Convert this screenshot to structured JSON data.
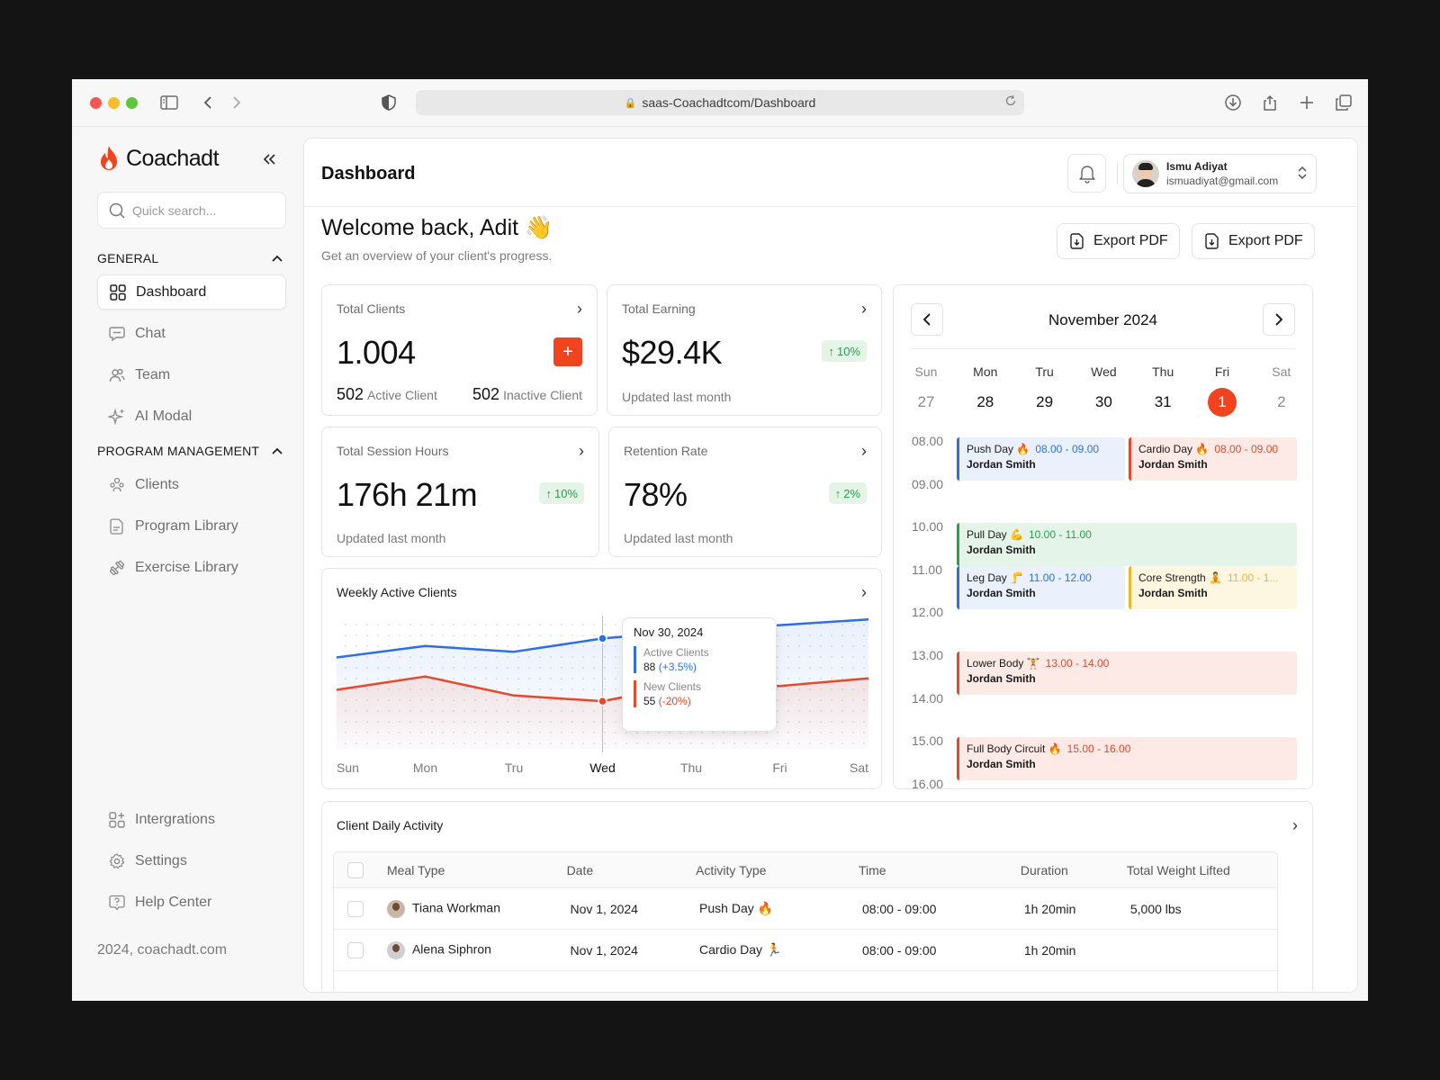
{
  "browser": {
    "url": "saas-Coachadtcom/Dashboard"
  },
  "sidebar": {
    "brand": "Coachadt",
    "search_placeholder": "Quick search...",
    "sections": [
      {
        "title": "GENERAL"
      },
      {
        "title": "PROGRAM MANAGEMENT"
      }
    ],
    "general_items": [
      {
        "label": "Dashboard",
        "icon": "grid-icon",
        "active": true
      },
      {
        "label": "Chat",
        "icon": "chat-icon"
      },
      {
        "label": "Team",
        "icon": "users-icon"
      },
      {
        "label": "AI Modal",
        "icon": "sparkle-icon"
      }
    ],
    "program_items": [
      {
        "label": "Clients",
        "icon": "clients-icon"
      },
      {
        "label": "Program Library",
        "icon": "document-icon"
      },
      {
        "label": "Exercise Library",
        "icon": "dumbbell-icon"
      }
    ],
    "bottom_items": [
      {
        "label": "Intergrations",
        "icon": "integrations-icon"
      },
      {
        "label": "Settings",
        "icon": "gear-icon"
      },
      {
        "label": "Help Center",
        "icon": "help-icon"
      }
    ],
    "copyright": "2024, coachadt.com"
  },
  "header": {
    "title": "Dashboard",
    "user_name": "Ismu Adiyat",
    "user_email": "ismuadiyat@gmail.com"
  },
  "welcome": {
    "title": "Welcome back, Adit 👋",
    "subtitle": "Get an overview of your client's progress.",
    "export_labels": [
      "Export PDF",
      "Export PDF"
    ]
  },
  "stats": {
    "total_clients": {
      "title": "Total Clients",
      "value": "1.004",
      "active_count": "502",
      "active_label": "Active Client",
      "inactive_count": "502",
      "inactive_label": "Inactive Client"
    },
    "total_earning": {
      "title": "Total Earning",
      "value": "$29.4K",
      "change": "10%",
      "footer": "Updated last month"
    },
    "session_hours": {
      "title": "Total Session Hours",
      "value": "176h 21m",
      "change": "10%",
      "footer": "Updated last month"
    },
    "retention": {
      "title": "Retention Rate",
      "value": "78%",
      "change": "2%",
      "footer": "Updated last month"
    }
  },
  "chart_data": {
    "type": "area",
    "title": "Weekly Active Clients",
    "categories": [
      "Sun",
      "Mon",
      "Tru",
      "Wed",
      "Thu",
      "Fri",
      "Sat"
    ],
    "highlighted_category": "Wed",
    "series": [
      {
        "name": "Active Clients",
        "color": "#2f6fe4",
        "values": [
          78,
          84,
          81,
          88,
          92,
          95,
          98
        ]
      },
      {
        "name": "New Clients",
        "color": "#e8472a",
        "values": [
          61,
          68,
          58,
          55,
          64,
          63,
          67
        ]
      }
    ],
    "ylim": [
      30,
      100
    ],
    "grid": "dotted",
    "tooltip": {
      "date": "Nov 30, 2024",
      "rows": [
        {
          "label": "Active Clients",
          "value": "88",
          "change": "(+3.5%)"
        },
        {
          "label": "New Clients",
          "value": "55",
          "change": "(-20%)"
        }
      ]
    }
  },
  "calendar": {
    "month": "November 2024",
    "days": [
      {
        "name": "Sun",
        "date": "27",
        "muted": true
      },
      {
        "name": "Mon",
        "date": "28"
      },
      {
        "name": "Tru",
        "date": "29"
      },
      {
        "name": "Wed",
        "date": "30"
      },
      {
        "name": "Thu",
        "date": "31"
      },
      {
        "name": "Fri",
        "date": "1",
        "today": true
      },
      {
        "name": "Sat",
        "date": "2",
        "muted": true
      }
    ],
    "times": [
      "08.00",
      "09.00",
      "10.00",
      "11.00",
      "12.00",
      "13.00",
      "14.00",
      "15.00",
      "16.00"
    ],
    "events": [
      {
        "title": "Push Day 🔥",
        "time": "08.00 - 09.00",
        "who": "Jordan Smith",
        "color": "blue",
        "start": 8,
        "column": "left"
      },
      {
        "title": "Cardio Day 🔥",
        "time": "08.00 - 09.00",
        "who": "Jordan Smith",
        "color": "red",
        "start": 8,
        "column": "right"
      },
      {
        "title": "Pull Day 💪",
        "time": "10.00 - 11.00",
        "who": "Jordan Smith",
        "color": "green",
        "start": 10,
        "column": "full"
      },
      {
        "title": "Leg Day 🦵",
        "time": "11.00 - 12.00",
        "who": "Jordan Smith",
        "color": "blue",
        "start": 11,
        "column": "left"
      },
      {
        "title": "Core Strength 🧘",
        "time": "11.00 - 1...",
        "who": "Jordan Smith",
        "color": "yellow",
        "start": 11,
        "column": "right"
      },
      {
        "title": "Lower Body 🏋",
        "time": "13.00 - 14.00",
        "who": "Jordan Smith",
        "color": "red",
        "start": 13,
        "column": "full"
      },
      {
        "title": "Full Body Circuit 🔥",
        "time": "15.00 - 16.00",
        "who": "Jordan Smith",
        "color": "red",
        "start": 15,
        "column": "full"
      }
    ]
  },
  "activity": {
    "title": "Client Daily Activity",
    "columns": [
      "Meal Type",
      "Date",
      "Activity Type",
      "Time",
      "Duration",
      "Total Weight Lifted"
    ],
    "rows": [
      {
        "name": "Tiana Workman",
        "date": "Nov 1, 2024",
        "activity": "Push Day 🔥",
        "time": "08:00 - 09:00",
        "duration": "1h 20min",
        "weight": "5,000 lbs"
      },
      {
        "name": "Alena Siphron",
        "date": "Nov 1, 2024",
        "activity": "Cardio Day 🏃",
        "time": "08:00 - 09:00",
        "duration": "1h 20min",
        "weight": ""
      }
    ]
  }
}
